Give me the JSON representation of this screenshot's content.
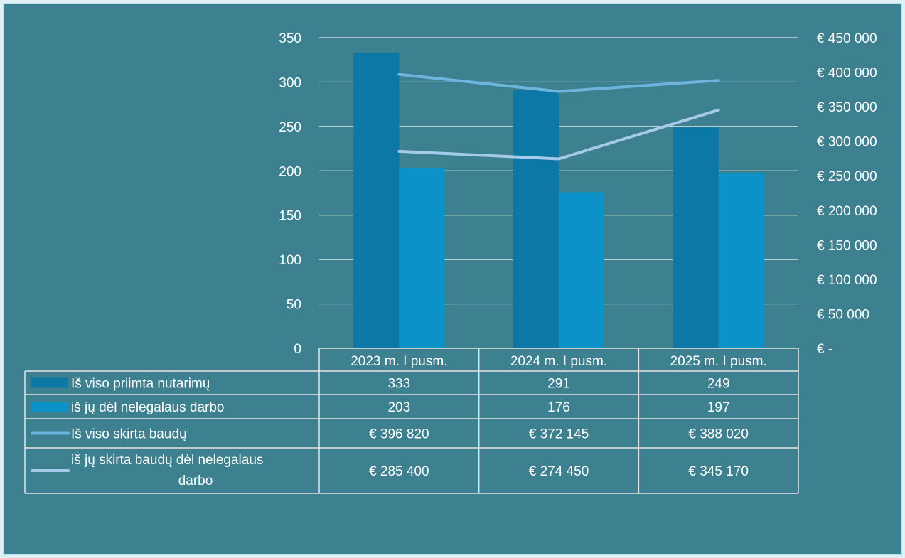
{
  "colors": {
    "background": "#3d8190",
    "gridline": "#ffffff",
    "text": "#ffffff",
    "bar_total": "#0b78a6",
    "bar_illegal": "#0b92c8",
    "line_total": "#6eb5de",
    "line_illegal": "#a6cbea"
  },
  "chart_data": {
    "type": "bar",
    "categories": [
      "2023 m. I pusm.",
      "2024 m. I pusm.",
      "2025 m. I pusm."
    ],
    "y_left": {
      "min": 0,
      "max": 350,
      "step": 50,
      "tick_labels": [
        "0",
        "50",
        "100",
        "150",
        "200",
        "250",
        "300",
        "350"
      ]
    },
    "y_right": {
      "min": 0,
      "max": 450000,
      "step": 50000,
      "tick_labels": [
        "€ -",
        "€ 50 000",
        "€ 100 000",
        "€ 150 000",
        "€ 200 000",
        "€ 250 000",
        "€ 300 000",
        "€ 350 000",
        "€ 400 000",
        "€ 450 000"
      ]
    },
    "grid": true,
    "legend": "data-table",
    "series": [
      {
        "name": "Iš viso priimta nutarimų",
        "kind": "bar",
        "axis": "left",
        "color": "#0b78a6",
        "values": [
          333,
          291,
          249
        ],
        "labels": [
          "333",
          "291",
          "249"
        ]
      },
      {
        "name": "iš jų dėl nelegalaus darbo",
        "kind": "bar",
        "axis": "left",
        "color": "#0b92c8",
        "values": [
          203,
          176,
          197
        ],
        "labels": [
          "203",
          "176",
          "197"
        ]
      },
      {
        "name": "Iš viso skirta baudų",
        "kind": "line",
        "axis": "right",
        "color": "#6eb5de",
        "values": [
          396820,
          372145,
          388020
        ],
        "labels": [
          "€ 396 820",
          "€ 372 145",
          "€ 388 020"
        ]
      },
      {
        "name": "iš jų skirta baudų dėl nelegalaus darbo",
        "kind": "line",
        "axis": "right",
        "color": "#a6cbea",
        "values": [
          285400,
          274450,
          345170
        ],
        "labels": [
          "€ 285 400",
          "€ 274 450",
          "€ 345 170"
        ]
      }
    ]
  }
}
